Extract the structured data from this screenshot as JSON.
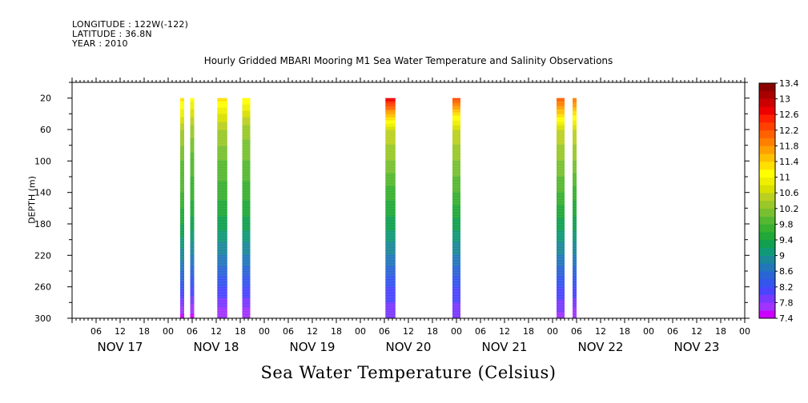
{
  "header": {
    "longitude": "LONGITUDE : 122W(-122)",
    "latitude": "LATITUDE : 36.8N",
    "year": "YEAR : 2010"
  },
  "chart_data": {
    "type": "heatmap",
    "title": "Hourly Gridded MBARI Mooring M1 Sea Water Temperature and Salinity Observations",
    "xlabel": "Sea Water Temperature (Celsius)",
    "ylabel": "DEPTH (m)",
    "x_range_hours": [
      0,
      168
    ],
    "x_start": "2010-11-17 00:00",
    "x_hour_ticks": [
      "06",
      "12",
      "18",
      "00",
      "06",
      "12",
      "18",
      "00",
      "06",
      "12",
      "18",
      "00",
      "06",
      "12",
      "18",
      "00",
      "06",
      "12",
      "18",
      "00",
      "06",
      "12",
      "18",
      "00",
      "06",
      "12",
      "18",
      "00"
    ],
    "x_day_labels": [
      "NOV 17",
      "NOV 18",
      "NOV 19",
      "NOV 20",
      "NOV 21",
      "NOV 22",
      "NOV 23"
    ],
    "y_range_depth_m": [
      300,
      0
    ],
    "y_ticks": [
      20,
      60,
      100,
      140,
      180,
      220,
      260,
      300
    ],
    "colorbar": {
      "levels": [
        7.4,
        7.6,
        7.8,
        8.0,
        8.2,
        8.4,
        8.6,
        8.8,
        9.0,
        9.2,
        9.4,
        9.6,
        9.8,
        10.0,
        10.2,
        10.4,
        10.6,
        10.8,
        11.0,
        11.2,
        11.4,
        11.6,
        11.8,
        12.0,
        12.2,
        12.4,
        12.6,
        12.8,
        13.0,
        13.2,
        13.4
      ],
      "labels": [
        "7.4",
        "7.8",
        "8.2",
        "8.6",
        "9",
        "9.4",
        "9.8",
        "10.2",
        "10.6",
        "11",
        "11.4",
        "11.8",
        "12.2",
        "12.6",
        "13",
        "13.4"
      ],
      "colors": [
        "#cc00ff",
        "#a033ff",
        "#7a38ff",
        "#4a44ff",
        "#3355ee",
        "#2a65d5",
        "#2277bb",
        "#1a8899",
        "#109977",
        "#10a050",
        "#20a838",
        "#38b030",
        "#55b830",
        "#78c030",
        "#99c828",
        "#bbd020",
        "#d8e000",
        "#eef000",
        "#ffff00",
        "#ffe000",
        "#ffc000",
        "#ffa000",
        "#ff8000",
        "#ff6000",
        "#ff4000",
        "#ff2000",
        "#ee0000",
        "#cc0000",
        "#aa0000",
        "#8b0000"
      ]
    },
    "series": [
      {
        "time_hours": 27.5,
        "depth_m": [
          20,
          40,
          60,
          100,
          140,
          180,
          220,
          260,
          300
        ],
        "temperature": [
          11.3,
          10.9,
          10.4,
          10.0,
          9.8,
          9.4,
          8.9,
          8.3,
          7.5
        ]
      },
      {
        "time_hours": 30.0,
        "depth_m": [
          20,
          40,
          60,
          100,
          140,
          180,
          220,
          260,
          300
        ],
        "temperature": [
          11.1,
          10.7,
          10.3,
          9.9,
          9.7,
          9.3,
          8.8,
          8.2,
          7.5
        ]
      },
      {
        "time_hours": 37.5,
        "depth_m": [
          20,
          40,
          60,
          100,
          140,
          180,
          220,
          260,
          300
        ],
        "temperature": [
          11.3,
          10.8,
          10.4,
          10.0,
          9.7,
          9.3,
          8.8,
          8.2,
          7.6
        ]
      },
      {
        "time_hours": 43.5,
        "depth_m": [
          20,
          40,
          60,
          100,
          140,
          180,
          220,
          260,
          300
        ],
        "temperature": [
          11.2,
          10.7,
          10.3,
          10.0,
          9.7,
          9.3,
          8.8,
          8.2,
          7.6
        ]
      },
      {
        "time_hours": 79.5,
        "depth_m": [
          20,
          40,
          60,
          100,
          140,
          180,
          220,
          260,
          300
        ],
        "temperature": [
          12.8,
          11.6,
          10.6,
          10.2,
          9.7,
          9.3,
          8.8,
          8.2,
          7.8
        ]
      },
      {
        "time_hours": 96.0,
        "depth_m": [
          20,
          40,
          60,
          100,
          140,
          180,
          220,
          260,
          300
        ],
        "temperature": [
          12.3,
          11.3,
          10.6,
          10.2,
          9.8,
          9.3,
          8.8,
          8.2,
          7.8
        ]
      },
      {
        "time_hours": 122.0,
        "depth_m": [
          20,
          40,
          60,
          100,
          140,
          180,
          220,
          260,
          300
        ],
        "temperature": [
          12.2,
          11.4,
          10.6,
          10.2,
          9.8,
          9.3,
          8.8,
          8.2,
          7.7
        ]
      },
      {
        "time_hours": 125.5,
        "depth_m": [
          20,
          40,
          60,
          100,
          140,
          180,
          220,
          260,
          300
        ],
        "temperature": [
          12.0,
          11.3,
          10.6,
          10.2,
          9.7,
          9.3,
          8.8,
          8.2,
          7.6
        ]
      }
    ],
    "bar_width_hours": [
      1.0,
      1.0,
      2.5,
      2.0,
      2.5,
      2.0,
      2.0,
      1.0
    ],
    "legend": "right"
  }
}
